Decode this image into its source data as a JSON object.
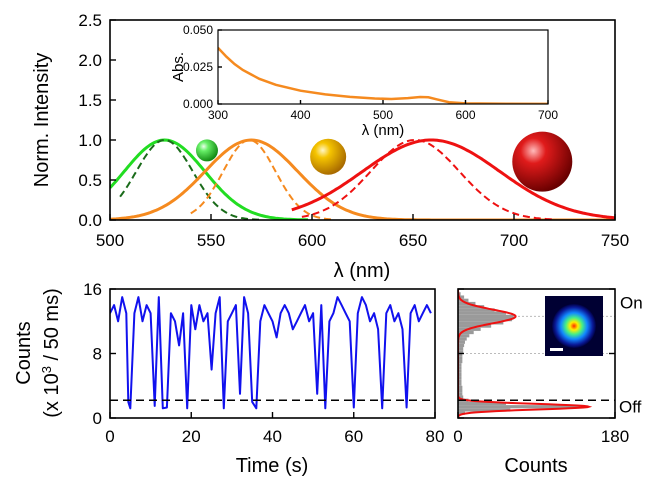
{
  "chart_data": [
    {
      "id": "spectra",
      "type": "line",
      "xlabel": "λ (nm)",
      "ylabel": "Norm. Intensity",
      "xlim": [
        500,
        750
      ],
      "ylim": [
        0,
        2.5
      ],
      "xticks": [
        "500",
        "550",
        "600",
        "650",
        "700",
        "750"
      ],
      "yticks": [
        "0.0",
        "0.5",
        "1.0",
        "1.5",
        "2.0",
        "2.5"
      ],
      "series": [
        {
          "color": "#22dd22",
          "style": "solid",
          "peak": 527,
          "width": 20,
          "region": [
            500,
            598
          ]
        },
        {
          "color": "#1a6b1a",
          "style": "dashed",
          "peak": 527,
          "width": 14,
          "region": [
            505,
            575
          ]
        },
        {
          "color": "#f58a1f",
          "style": "solid",
          "peak": 570,
          "width": 23,
          "region": [
            500,
            750
          ]
        },
        {
          "color": "#f58a1f",
          "style": "dashed",
          "peak": 569,
          "width": 13,
          "region": [
            540,
            610
          ]
        },
        {
          "color": "#ee1111",
          "style": "solid",
          "peak": 659,
          "width": 34,
          "region": [
            590,
            750
          ]
        },
        {
          "color": "#ee1111",
          "style": "dashed",
          "peak": 651,
          "width": 22,
          "region": [
            595,
            720
          ]
        }
      ],
      "particles": [
        {
          "color": "#33dd33",
          "x_nm": 548,
          "y": 0.87,
          "size": "small"
        },
        {
          "color": "#f0b400",
          "x_nm": 608,
          "y": 0.79,
          "size": "medium"
        },
        {
          "color": "#dd1111",
          "x_nm": 714,
          "y": 0.73,
          "size": "large"
        }
      ]
    },
    {
      "id": "absorbance-inset",
      "type": "line",
      "xlabel": "λ (nm)",
      "ylabel": "Abs.",
      "xlim": [
        300,
        700
      ],
      "ylim": [
        0,
        0.05
      ],
      "xticks": [
        "300",
        "400",
        "500",
        "600",
        "700"
      ],
      "yticks": [
        "0.000",
        "0.025",
        "0.050"
      ],
      "series": [
        {
          "color": "#f58a1f",
          "x": [
            300,
            310,
            320,
            330,
            340,
            350,
            370,
            400,
            430,
            460,
            490,
            510,
            530,
            545,
            555,
            565,
            580,
            600,
            650,
            700
          ],
          "y": [
            0.038,
            0.032,
            0.027,
            0.023,
            0.02,
            0.017,
            0.013,
            0.009,
            0.0065,
            0.0048,
            0.0037,
            0.0034,
            0.004,
            0.0047,
            0.0045,
            0.0032,
            0.0012,
            0.0004,
            0.0002,
            0.0001
          ]
        }
      ]
    },
    {
      "id": "blinking-trace",
      "type": "line",
      "xlabel": "Time (s)",
      "ylabel_line1": "Counts",
      "ylabel_line2_prefix": "(x 10",
      "ylabel_line2_sup": "3",
      "ylabel_line2_suffix": " / 50 ms)",
      "xlim": [
        0,
        80
      ],
      "ylim": [
        0,
        16
      ],
      "xticks": [
        "0",
        "20",
        "40",
        "60",
        "80"
      ],
      "yticks": [
        "0",
        "8",
        "16"
      ],
      "threshold": 2.2,
      "series": [
        {
          "color": "#1111ee",
          "x": [
            0,
            1,
            2,
            3,
            4,
            4.5,
            5,
            6,
            7,
            8,
            9,
            10,
            11,
            12,
            13,
            14,
            15,
            16,
            17,
            18,
            19,
            20,
            21,
            22,
            23,
            24,
            25,
            26,
            27,
            28,
            29,
            30,
            31,
            32,
            33,
            34,
            35,
            36,
            37,
            38,
            39,
            40,
            41,
            42,
            43,
            44,
            45,
            46,
            47,
            48,
            49,
            50,
            51,
            52,
            53,
            54,
            55,
            56,
            57,
            58,
            59,
            60,
            61,
            62,
            63,
            64,
            65,
            66,
            67,
            68,
            69,
            70,
            71,
            72,
            73,
            74,
            75,
            76,
            77,
            78,
            79
          ],
          "y": [
            13,
            14,
            12,
            15,
            13,
            2,
            1.2,
            13,
            15,
            12,
            14,
            13,
            1.5,
            15,
            1.2,
            1.3,
            13,
            12,
            9,
            13,
            1.2,
            14,
            11,
            14,
            12,
            13,
            6,
            13,
            15,
            1.2,
            12,
            13,
            14,
            3,
            15,
            13,
            2,
            1.2,
            12,
            14,
            13,
            12,
            10,
            13,
            14,
            13,
            11,
            12,
            13,
            14,
            12,
            13,
            3,
            14,
            1.2,
            12,
            13,
            15,
            14,
            13,
            12,
            1.3,
            13,
            15,
            14,
            12,
            13,
            11,
            1.2,
            13,
            14,
            12,
            13,
            11,
            1.3,
            13,
            14,
            12,
            13,
            14,
            13
          ]
        }
      ]
    },
    {
      "id": "count-histogram",
      "type": "bar",
      "xlabel": "Counts",
      "xlim": [
        0,
        180
      ],
      "ylim": [
        0,
        16
      ],
      "xticks": [
        "0",
        "180"
      ],
      "bin_width": 0.4,
      "bin_centers": [
        0.6,
        1.0,
        1.4,
        1.8,
        2.2,
        2.6,
        3.0,
        3.4,
        3.8,
        4.2,
        4.6,
        5.0,
        5.4,
        5.8,
        6.2,
        6.6,
        7.0,
        7.4,
        7.8,
        8.2,
        8.6,
        9.0,
        9.4,
        9.8,
        10.2,
        10.6,
        11.0,
        11.4,
        11.8,
        12.2,
        12.6,
        13.0,
        13.4,
        13.8,
        14.2,
        14.6,
        15.0,
        15.4
      ],
      "counts": [
        8,
        60,
        140,
        55,
        12,
        6,
        5,
        5,
        5,
        4,
        4,
        4,
        4,
        4,
        4,
        4,
        5,
        5,
        5,
        6,
        6,
        7,
        8,
        10,
        13,
        18,
        26,
        38,
        52,
        62,
        64,
        55,
        42,
        30,
        20,
        12,
        7,
        3
      ],
      "fit_color": "#ee1111",
      "fit_peaks": [
        {
          "center": 1.4,
          "width": 0.35,
          "height": 150
        },
        {
          "center": 12.6,
          "width": 0.85,
          "height": 66
        }
      ],
      "state_labels": {
        "on": "On",
        "off": "Off"
      },
      "on_level": 12.6,
      "off_level": 1.4
    }
  ]
}
